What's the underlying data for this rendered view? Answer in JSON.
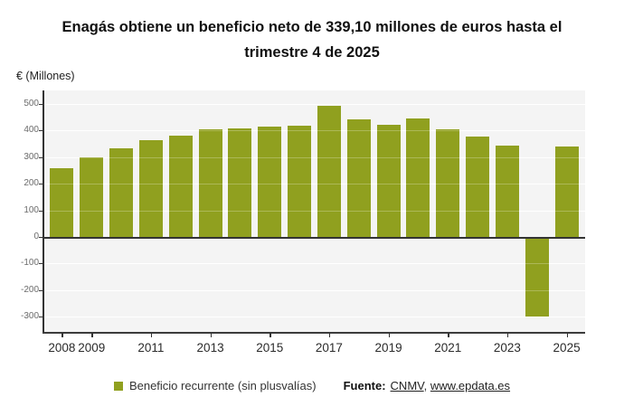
{
  "title": "Enagás obtiene un beneficio neto de 339,10 millones de euros hasta el trimestre 4 de 2025",
  "y_axis_unit": "€ (Millones)",
  "legend": {
    "series_label": "Beneficio recurrente (sin plusvalías)",
    "source_label": "Fuente:",
    "source_links": [
      "CNMV",
      "www.epdata.es"
    ],
    "separator": ", "
  },
  "colors": {
    "bar": "#90a01f",
    "plot_background": "#f4f4f4",
    "gridline": "#ffffff",
    "axis": "#333333",
    "title_text": "#111111",
    "tick_text": "#6b6b6b"
  },
  "chart_data": {
    "type": "bar",
    "title": "Enagás obtiene un beneficio neto de 339,10 millones de euros hasta el trimestre 4 de 2025",
    "ylabel": "€ (Millones)",
    "xlabel": "",
    "legend_entry": "Beneficio recurrente (sin plusvalías)",
    "legend_position": "bottom",
    "grid": true,
    "categories": [
      "2008",
      "2009",
      "2010",
      "2011",
      "2012",
      "2013",
      "2014",
      "2015",
      "2016",
      "2017",
      "2018",
      "2019",
      "2020",
      "2021",
      "2022",
      "2023",
      "2024",
      "2025"
    ],
    "values": [
      258.9,
      298.0,
      333.5,
      364.6,
      379.5,
      403.2,
      406.5,
      412.7,
      417.2,
      490.8,
      442.6,
      422.6,
      444.0,
      403.8,
      375.8,
      342.5,
      -299.1,
      339.1
    ],
    "x_tick_labels": [
      "2008",
      "2009",
      "2011",
      "2013",
      "2015",
      "2017",
      "2019",
      "2021",
      "2023",
      "2025"
    ],
    "y_ticks": [
      500,
      400,
      300,
      200,
      100,
      0,
      -100,
      -200,
      -300
    ],
    "ylim": [
      -360,
      550
    ]
  }
}
